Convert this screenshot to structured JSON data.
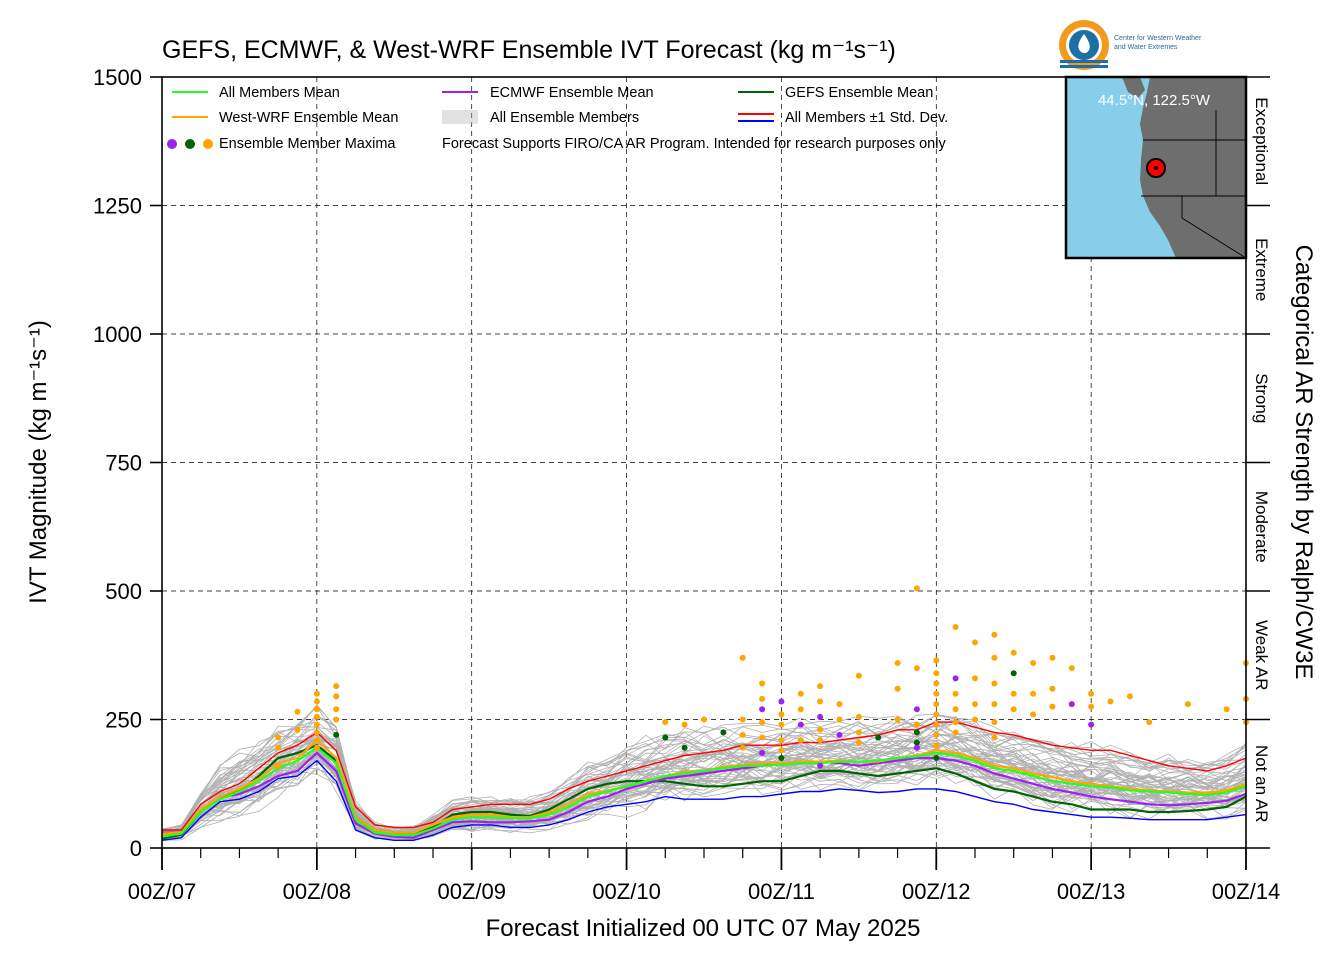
{
  "title": "GEFS, ECMWF, & West-WRF Ensemble IVT Forecast (kg m⁻¹s⁻¹)",
  "logo": {
    "org_line1": "Center for Western Weather",
    "org_line2": "and Water Extremes",
    "icon": "cw3e-water-drop-logo"
  },
  "map_inset": {
    "location_label": "44.5°N, 122.5°W",
    "marker_icon": "location-marker-icon",
    "ocean_color": "#87ceeb",
    "land_color": "#6e6e6e"
  },
  "legend": {
    "row1": [
      {
        "label": "All Members Mean",
        "color": "#22ff22"
      },
      {
        "label": "ECMWF Ensemble Mean",
        "color": "#a020f0"
      },
      {
        "label": "GEFS Ensemble Mean",
        "color": "#006400"
      }
    ],
    "row2": [
      {
        "label": "West-WRF Ensemble Mean",
        "color": "#ffa500"
      },
      {
        "label": "All Ensemble Members",
        "color": "#b0b0b0"
      },
      {
        "label": "All Members ±1 Std. Dev.",
        "color": "#ff0000",
        "color2": "#0000ff"
      }
    ],
    "row3_label": "Ensemble Member Maxima",
    "row3_colors": [
      "#a020f0",
      "#006400",
      "#ffa500"
    ],
    "disclaimer": "Forecast Supports FIRO/CA AR Program. Intended for research purposes only"
  },
  "right_axis": {
    "label": "Categorical AR Strength by Ralph/CW3E",
    "categories": [
      {
        "name": "Exceptional",
        "range": [
          1250,
          1500
        ]
      },
      {
        "name": "Extreme",
        "range": [
          1000,
          1250
        ]
      },
      {
        "name": "Strong",
        "range": [
          750,
          1000
        ]
      },
      {
        "name": "Moderate",
        "range": [
          500,
          750
        ]
      },
      {
        "name": "Weak AR",
        "range": [
          250,
          500
        ]
      },
      {
        "name": "Not an AR",
        "range": [
          0,
          250
        ]
      }
    ]
  },
  "chart_data": {
    "type": "line",
    "title": "GEFS, ECMWF, & West-WRF Ensemble IVT Forecast (kg m⁻¹s⁻¹)",
    "xlabel": "Forecast Initialized 00 UTC 07 May 2025",
    "ylabel": "IVT Magnitude (kg m⁻¹s⁻¹)",
    "ylim": [
      0,
      1500
    ],
    "xlim": [
      0,
      168
    ],
    "x_unit": "forecast hour",
    "y_ticks": [
      0,
      250,
      500,
      750,
      1000,
      1250,
      1500
    ],
    "x_ticks": [
      {
        "x": 0,
        "label": "00Z/07"
      },
      {
        "x": 24,
        "label": "00Z/08"
      },
      {
        "x": 48,
        "label": "00Z/09"
      },
      {
        "x": 72,
        "label": "00Z/10"
      },
      {
        "x": 96,
        "label": "00Z/11"
      },
      {
        "x": 120,
        "label": "00Z/12"
      },
      {
        "x": 144,
        "label": "00Z/13"
      },
      {
        "x": 168,
        "label": "00Z/14"
      }
    ],
    "grid": true,
    "legend_position": "top-left",
    "x": [
      0,
      3,
      6,
      9,
      12,
      15,
      18,
      21,
      24,
      27,
      30,
      33,
      36,
      39,
      42,
      45,
      48,
      51,
      54,
      57,
      60,
      63,
      66,
      69,
      72,
      75,
      78,
      81,
      84,
      87,
      90,
      93,
      96,
      99,
      102,
      105,
      108,
      111,
      114,
      117,
      120,
      123,
      126,
      129,
      132,
      135,
      138,
      141,
      144,
      147,
      150,
      153,
      156,
      159,
      162,
      165,
      168
    ],
    "series": [
      {
        "name": "All Members ±1 Std. Dev.",
        "role": "upper",
        "color": "#ff0000",
        "values": [
          35,
          35,
          85,
          110,
          125,
          155,
          185,
          200,
          225,
          190,
          80,
          45,
          40,
          40,
          50,
          75,
          80,
          85,
          85,
          85,
          95,
          115,
          130,
          140,
          150,
          160,
          170,
          180,
          185,
          190,
          200,
          200,
          200,
          205,
          205,
          210,
          215,
          220,
          230,
          230,
          245,
          245,
          235,
          225,
          220,
          210,
          200,
          195,
          190,
          190,
          180,
          170,
          160,
          155,
          150,
          160,
          175
        ]
      },
      {
        "name": "All Members Mean",
        "role": "mean",
        "color": "#22ff22",
        "values": [
          22,
          28,
          70,
          95,
          110,
          130,
          155,
          170,
          195,
          165,
          55,
          30,
          25,
          25,
          38,
          55,
          60,
          60,
          58,
          58,
          65,
          80,
          100,
          110,
          120,
          130,
          140,
          145,
          150,
          155,
          160,
          160,
          162,
          165,
          165,
          168,
          168,
          170,
          175,
          178,
          185,
          180,
          170,
          155,
          150,
          140,
          130,
          125,
          120,
          118,
          112,
          110,
          108,
          105,
          103,
          108,
          120
        ]
      },
      {
        "name": "ECMWF Ensemble Mean",
        "role": "ecmwf",
        "color": "#a020f0",
        "values": [
          30,
          30,
          72,
          98,
          105,
          120,
          140,
          150,
          185,
          150,
          48,
          28,
          22,
          20,
          35,
          50,
          52,
          50,
          50,
          52,
          55,
          70,
          90,
          100,
          115,
          125,
          135,
          140,
          145,
          150,
          155,
          160,
          165,
          165,
          168,
          165,
          160,
          165,
          170,
          175,
          175,
          170,
          160,
          145,
          135,
          125,
          115,
          108,
          100,
          95,
          90,
          85,
          83,
          85,
          88,
          92,
          105
        ]
      },
      {
        "name": "GEFS Ensemble Mean",
        "role": "gefs",
        "color": "#006400",
        "values": [
          18,
          26,
          70,
          100,
          110,
          140,
          175,
          185,
          200,
          170,
          60,
          35,
          30,
          30,
          40,
          65,
          70,
          70,
          65,
          62,
          75,
          95,
          115,
          125,
          130,
          130,
          130,
          125,
          120,
          120,
          125,
          130,
          130,
          140,
          150,
          150,
          145,
          140,
          145,
          150,
          155,
          145,
          130,
          115,
          110,
          100,
          90,
          85,
          75,
          75,
          75,
          70,
          70,
          72,
          75,
          80,
          100
        ]
      },
      {
        "name": "West-WRF Ensemble Mean",
        "role": "wwrf",
        "color": "#ffa500",
        "values": [
          28,
          30,
          75,
          100,
          115,
          135,
          165,
          175,
          210,
          175,
          60,
          35,
          30,
          30,
          45,
          60,
          65,
          65,
          60,
          60,
          70,
          85,
          105,
          112,
          120,
          130,
          140,
          148,
          150,
          158,
          162,
          165,
          165,
          168,
          168,
          170,
          168,
          168,
          175,
          180,
          190,
          185,
          175,
          160,
          155,
          145,
          138,
          130,
          125,
          120,
          115,
          112,
          110,
          108,
          108,
          112,
          125
        ]
      },
      {
        "name": "All Members -1 Std. Dev.",
        "role": "lower",
        "color": "#0000ff",
        "values": [
          15,
          20,
          60,
          90,
          95,
          110,
          135,
          140,
          170,
          130,
          35,
          20,
          15,
          15,
          25,
          40,
          45,
          45,
          40,
          40,
          45,
          55,
          70,
          80,
          85,
          90,
          100,
          95,
          95,
          95,
          100,
          100,
          105,
          110,
          110,
          115,
          112,
          108,
          110,
          115,
          115,
          110,
          100,
          90,
          85,
          75,
          70,
          65,
          60,
          60,
          58,
          55,
          55,
          55,
          55,
          60,
          65
        ]
      }
    ],
    "member_spread": {
      "label": "All Ensemble Members",
      "min_offset": -45,
      "max_offset": 70
    },
    "maxima": [
      {
        "x": 18,
        "y": 215,
        "model": "WWRF"
      },
      {
        "x": 18,
        "y": 195,
        "model": "WWRF"
      },
      {
        "x": 18,
        "y": 160,
        "model": "WWRF"
      },
      {
        "x": 21,
        "y": 265,
        "model": "WWRF"
      },
      {
        "x": 21,
        "y": 230,
        "model": "WWRF"
      },
      {
        "x": 24,
        "y": 300,
        "model": "WWRF"
      },
      {
        "x": 24,
        "y": 285,
        "model": "WWRF"
      },
      {
        "x": 24,
        "y": 270,
        "model": "WWRF"
      },
      {
        "x": 24,
        "y": 255,
        "model": "WWRF"
      },
      {
        "x": 24,
        "y": 240,
        "model": "WWRF"
      },
      {
        "x": 24,
        "y": 225,
        "model": "WWRF"
      },
      {
        "x": 24,
        "y": 210,
        "model": "WWRF"
      },
      {
        "x": 24,
        "y": 195,
        "model": "WWRF"
      },
      {
        "x": 27,
        "y": 315,
        "model": "WWRF"
      },
      {
        "x": 27,
        "y": 295,
        "model": "WWRF"
      },
      {
        "x": 27,
        "y": 270,
        "model": "WWRF"
      },
      {
        "x": 27,
        "y": 250,
        "model": "WWRF"
      },
      {
        "x": 27,
        "y": 220,
        "model": "GEFS"
      },
      {
        "x": 78,
        "y": 245,
        "model": "WWRF"
      },
      {
        "x": 78,
        "y": 215,
        "model": "GEFS"
      },
      {
        "x": 81,
        "y": 240,
        "model": "WWRF"
      },
      {
        "x": 81,
        "y": 195,
        "model": "GEFS"
      },
      {
        "x": 84,
        "y": 250,
        "model": "WWRF"
      },
      {
        "x": 87,
        "y": 225,
        "model": "GEFS"
      },
      {
        "x": 90,
        "y": 370,
        "model": "WWRF"
      },
      {
        "x": 90,
        "y": 250,
        "model": "WWRF"
      },
      {
        "x": 90,
        "y": 220,
        "model": "WWRF"
      },
      {
        "x": 90,
        "y": 195,
        "model": "WWRF"
      },
      {
        "x": 93,
        "y": 320,
        "model": "WWRF"
      },
      {
        "x": 93,
        "y": 290,
        "model": "WWRF"
      },
      {
        "x": 93,
        "y": 270,
        "model": "ECMWF"
      },
      {
        "x": 93,
        "y": 245,
        "model": "WWRF"
      },
      {
        "x": 93,
        "y": 215,
        "model": "WWRF"
      },
      {
        "x": 93,
        "y": 185,
        "model": "ECMWF"
      },
      {
        "x": 96,
        "y": 285,
        "model": "ECMWF"
      },
      {
        "x": 96,
        "y": 260,
        "model": "WWRF"
      },
      {
        "x": 96,
        "y": 240,
        "model": "WWRF"
      },
      {
        "x": 96,
        "y": 210,
        "model": "WWRF"
      },
      {
        "x": 96,
        "y": 190,
        "model": "WWRF"
      },
      {
        "x": 96,
        "y": 175,
        "model": "GEFS"
      },
      {
        "x": 99,
        "y": 300,
        "model": "WWRF"
      },
      {
        "x": 99,
        "y": 270,
        "model": "WWRF"
      },
      {
        "x": 99,
        "y": 240,
        "model": "ECMWF"
      },
      {
        "x": 99,
        "y": 210,
        "model": "WWRF"
      },
      {
        "x": 102,
        "y": 315,
        "model": "WWRF"
      },
      {
        "x": 102,
        "y": 285,
        "model": "WWRF"
      },
      {
        "x": 102,
        "y": 255,
        "model": "ECMWF"
      },
      {
        "x": 102,
        "y": 230,
        "model": "WWRF"
      },
      {
        "x": 102,
        "y": 210,
        "model": "WWRF"
      },
      {
        "x": 102,
        "y": 160,
        "model": "ECMWF"
      },
      {
        "x": 105,
        "y": 280,
        "model": "WWRF"
      },
      {
        "x": 105,
        "y": 250,
        "model": "WWRF"
      },
      {
        "x": 105,
        "y": 220,
        "model": "ECMWF"
      },
      {
        "x": 108,
        "y": 335,
        "model": "WWRF"
      },
      {
        "x": 108,
        "y": 255,
        "model": "WWRF"
      },
      {
        "x": 108,
        "y": 225,
        "model": "WWRF"
      },
      {
        "x": 108,
        "y": 205,
        "model": "WWRF"
      },
      {
        "x": 111,
        "y": 215,
        "model": "GEFS"
      },
      {
        "x": 114,
        "y": 360,
        "model": "WWRF"
      },
      {
        "x": 114,
        "y": 310,
        "model": "WWRF"
      },
      {
        "x": 114,
        "y": 250,
        "model": "WWRF"
      },
      {
        "x": 117,
        "y": 505,
        "model": "WWRF"
      },
      {
        "x": 117,
        "y": 350,
        "model": "WWRF"
      },
      {
        "x": 117,
        "y": 270,
        "model": "ECMWF"
      },
      {
        "x": 117,
        "y": 240,
        "model": "WWRF"
      },
      {
        "x": 117,
        "y": 225,
        "model": "GEFS"
      },
      {
        "x": 117,
        "y": 205,
        "model": "GEFS"
      },
      {
        "x": 117,
        "y": 195,
        "model": "ECMWF"
      },
      {
        "x": 120,
        "y": 365,
        "model": "WWRF"
      },
      {
        "x": 120,
        "y": 340,
        "model": "WWRF"
      },
      {
        "x": 120,
        "y": 320,
        "model": "WWRF"
      },
      {
        "x": 120,
        "y": 300,
        "model": "WWRF"
      },
      {
        "x": 120,
        "y": 280,
        "model": "WWRF"
      },
      {
        "x": 120,
        "y": 260,
        "model": "WWRF"
      },
      {
        "x": 120,
        "y": 240,
        "model": "WWRF"
      },
      {
        "x": 120,
        "y": 220,
        "model": "WWRF"
      },
      {
        "x": 120,
        "y": 200,
        "model": "WWRF"
      },
      {
        "x": 120,
        "y": 175,
        "model": "GEFS"
      },
      {
        "x": 123,
        "y": 430,
        "model": "WWRF"
      },
      {
        "x": 123,
        "y": 330,
        "model": "ECMWF"
      },
      {
        "x": 123,
        "y": 300,
        "model": "WWRF"
      },
      {
        "x": 123,
        "y": 270,
        "model": "WWRF"
      },
      {
        "x": 123,
        "y": 245,
        "model": "WWRF"
      },
      {
        "x": 123,
        "y": 225,
        "model": "WWRF"
      },
      {
        "x": 126,
        "y": 400,
        "model": "WWRF"
      },
      {
        "x": 126,
        "y": 330,
        "model": "WWRF"
      },
      {
        "x": 126,
        "y": 280,
        "model": "WWRF"
      },
      {
        "x": 126,
        "y": 250,
        "model": "WWRF"
      },
      {
        "x": 129,
        "y": 415,
        "model": "WWRF"
      },
      {
        "x": 129,
        "y": 370,
        "model": "WWRF"
      },
      {
        "x": 129,
        "y": 320,
        "model": "WWRF"
      },
      {
        "x": 129,
        "y": 280,
        "model": "WWRF"
      },
      {
        "x": 129,
        "y": 245,
        "model": "WWRF"
      },
      {
        "x": 129,
        "y": 215,
        "model": "WWRF"
      },
      {
        "x": 132,
        "y": 380,
        "model": "WWRF"
      },
      {
        "x": 132,
        "y": 340,
        "model": "GEFS"
      },
      {
        "x": 132,
        "y": 300,
        "model": "WWRF"
      },
      {
        "x": 132,
        "y": 270,
        "model": "WWRF"
      },
      {
        "x": 135,
        "y": 360,
        "model": "WWRF"
      },
      {
        "x": 135,
        "y": 300,
        "model": "WWRF"
      },
      {
        "x": 135,
        "y": 260,
        "model": "WWRF"
      },
      {
        "x": 138,
        "y": 370,
        "model": "WWRF"
      },
      {
        "x": 138,
        "y": 310,
        "model": "WWRF"
      },
      {
        "x": 138,
        "y": 275,
        "model": "WWRF"
      },
      {
        "x": 141,
        "y": 350,
        "model": "WWRF"
      },
      {
        "x": 141,
        "y": 280,
        "model": "ECMWF"
      },
      {
        "x": 144,
        "y": 300,
        "model": "WWRF"
      },
      {
        "x": 144,
        "y": 275,
        "model": "WWRF"
      },
      {
        "x": 144,
        "y": 240,
        "model": "ECMWF"
      },
      {
        "x": 147,
        "y": 285,
        "model": "WWRF"
      },
      {
        "x": 150,
        "y": 295,
        "model": "WWRF"
      },
      {
        "x": 153,
        "y": 245,
        "model": "WWRF"
      },
      {
        "x": 159,
        "y": 280,
        "model": "WWRF"
      },
      {
        "x": 165,
        "y": 270,
        "model": "WWRF"
      },
      {
        "x": 168,
        "y": 360,
        "model": "WWRF"
      },
      {
        "x": 168,
        "y": 290,
        "model": "WWRF"
      },
      {
        "x": 168,
        "y": 245,
        "model": "WWRF"
      }
    ]
  }
}
